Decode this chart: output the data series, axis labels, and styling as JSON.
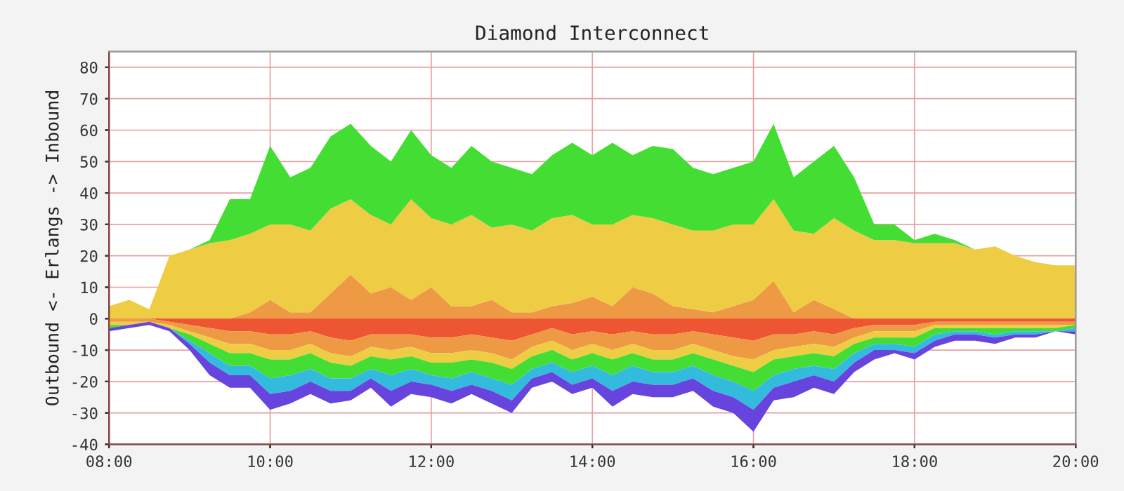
{
  "chart_data": [
    {
      "type": "area",
      "title": "Diamond Interconnect",
      "ylabel": "Outbound <- Erlangs -> Inbound",
      "stacked": true,
      "grid": true,
      "x": [
        8.0,
        8.25,
        8.5,
        8.75,
        9.0,
        9.25,
        9.5,
        9.75,
        10.0,
        10.25,
        10.5,
        10.75,
        11.0,
        11.25,
        11.5,
        11.75,
        12.0,
        12.25,
        12.5,
        12.75,
        13.0,
        13.25,
        13.5,
        13.75,
        14.0,
        14.25,
        14.5,
        14.75,
        15.0,
        15.25,
        15.5,
        15.75,
        16.0,
        16.25,
        16.5,
        16.75,
        17.0,
        17.25,
        17.5,
        17.75,
        18.0,
        18.25,
        18.5,
        18.75,
        19.0,
        19.25,
        19.5,
        19.75,
        20.0
      ],
      "xlim": [
        8,
        20
      ],
      "xticks": [
        {
          "value": 8,
          "label": "08:00"
        },
        {
          "value": 10,
          "label": "10:00"
        },
        {
          "value": 12,
          "label": "12:00"
        },
        {
          "value": 14,
          "label": "14:00"
        },
        {
          "value": 16,
          "label": "16:00"
        },
        {
          "value": 18,
          "label": "18:00"
        },
        {
          "value": 20,
          "label": "20:00"
        }
      ],
      "ylim": [
        -40,
        85
      ],
      "yticks": [
        -40,
        -30,
        -20,
        -10,
        0,
        10,
        20,
        30,
        40,
        50,
        60,
        70,
        80
      ],
      "series": [
        {
          "color": "#ee9944",
          "values": [
            0,
            0,
            0,
            0,
            0,
            0,
            0,
            2,
            6,
            2,
            2,
            8,
            14,
            8,
            10,
            6,
            10,
            4,
            4,
            6,
            2,
            2,
            4,
            5,
            7,
            4,
            10,
            8,
            4,
            3,
            2,
            4,
            6,
            12,
            2,
            6,
            3,
            0,
            0,
            0,
            0,
            0,
            0,
            0,
            0,
            0,
            0,
            0,
            0
          ]
        },
        {
          "color": "#eecc44",
          "values": [
            4,
            6,
            3,
            20,
            22,
            24,
            25,
            25,
            24,
            28,
            26,
            27,
            24,
            25,
            20,
            32,
            22,
            26,
            29,
            23,
            28,
            26,
            28,
            28,
            23,
            26,
            23,
            24,
            26,
            25,
            26,
            26,
            24,
            26,
            26,
            21,
            29,
            28,
            25,
            25,
            24,
            24,
            24,
            22,
            23,
            20,
            18,
            17,
            17
          ]
        },
        {
          "color": "#44dd33",
          "values": [
            0,
            0,
            0,
            0,
            0,
            1,
            13,
            11,
            25,
            15,
            20,
            23,
            24,
            22,
            20,
            22,
            20,
            18,
            22,
            21,
            18,
            18,
            20,
            23,
            22,
            26,
            19,
            23,
            24,
            20,
            18,
            18,
            20,
            24,
            17,
            23,
            23,
            17,
            5,
            5,
            1,
            3,
            1,
            0,
            0,
            0,
            0,
            0,
            0
          ]
        }
      ]
    },
    {
      "type": "area",
      "stacked": true,
      "tick_labels": false,
      "x": [
        8.0,
        8.25,
        8.5,
        8.75,
        9.0,
        9.25,
        9.5,
        9.75,
        10.0,
        10.25,
        10.5,
        10.75,
        11.0,
        11.25,
        11.5,
        11.75,
        12.0,
        12.25,
        12.5,
        12.75,
        13.0,
        13.25,
        13.5,
        13.75,
        14.0,
        14.25,
        14.5,
        14.75,
        15.0,
        15.25,
        15.5,
        15.75,
        16.0,
        16.25,
        16.5,
        16.75,
        17.0,
        17.25,
        17.5,
        17.75,
        18.0,
        18.25,
        18.5,
        18.75,
        19.0,
        19.25,
        19.5,
        19.75,
        20.0
      ],
      "xlim": [
        8,
        20
      ],
      "xticks": [
        {
          "value": 8,
          "label": null
        },
        {
          "value": 10,
          "label": null
        },
        {
          "value": 12,
          "label": null
        },
        {
          "value": 14,
          "label": null
        },
        {
          "value": 16,
          "label": null
        },
        {
          "value": 18,
          "label": null
        },
        {
          "value": 20,
          "label": null
        }
      ],
      "ylim": [
        -40,
        85
      ],
      "yticks": [
        -40,
        -30,
        -20,
        -10,
        0,
        10,
        20,
        30,
        40,
        50,
        60,
        70,
        80
      ],
      "series": [
        {
          "color": "#ee5533",
          "values": [
            0,
            0,
            0,
            -1,
            -2,
            -3,
            -4,
            -4,
            -5,
            -5,
            -4,
            -6,
            -7,
            -5,
            -5,
            -5,
            -6,
            -6,
            -5,
            -6,
            -7,
            -5,
            -3,
            -5,
            -4,
            -5,
            -4,
            -5,
            -5,
            -4,
            -5,
            -6,
            -7,
            -5,
            -5,
            -4,
            -5,
            -3,
            -2,
            -2,
            -2,
            -1,
            -1,
            -1,
            -1,
            -1,
            -1,
            -1,
            -1
          ]
        },
        {
          "color": "#ee9944",
          "values": [
            -1,
            -1,
            -1,
            -1,
            -2,
            -3,
            -4,
            -4,
            -5,
            -5,
            -4,
            -5,
            -5,
            -4,
            -5,
            -4,
            -5,
            -5,
            -5,
            -5,
            -6,
            -4,
            -4,
            -5,
            -4,
            -5,
            -4,
            -5,
            -5,
            -4,
            -5,
            -6,
            -6,
            -5,
            -4,
            -4,
            -4,
            -3,
            -2,
            -2,
            -2,
            -1,
            -1,
            -1,
            -1,
            -1,
            -1,
            -1,
            -1
          ]
        },
        {
          "color": "#eecc44",
          "values": [
            -1,
            -1,
            0,
            -1,
            -1,
            -2,
            -3,
            -3,
            -3,
            -3,
            -3,
            -3,
            -3,
            -3,
            -3,
            -3,
            -3,
            -3,
            -3,
            -3,
            -3,
            -3,
            -3,
            -3,
            -3,
            -3,
            -3,
            -3,
            -3,
            -3,
            -3,
            -3,
            -4,
            -3,
            -3,
            -3,
            -3,
            -2,
            -2,
            -2,
            -2,
            -1,
            -1,
            -1,
            -1,
            -1,
            -1,
            -1,
            0
          ]
        },
        {
          "color": "#44dd33",
          "values": [
            -1,
            0,
            0,
            0,
            -2,
            -3,
            -4,
            -4,
            -6,
            -5,
            -5,
            -5,
            -4,
            -4,
            -5,
            -4,
            -4,
            -5,
            -4,
            -5,
            -5,
            -4,
            -4,
            -4,
            -4,
            -5,
            -4,
            -4,
            -4,
            -4,
            -5,
            -5,
            -6,
            -5,
            -4,
            -4,
            -4,
            -3,
            -2,
            -2,
            -3,
            -2,
            -1,
            -1,
            -2,
            -1,
            -1,
            -1,
            -1
          ]
        },
        {
          "color": "#33bbdd",
          "values": [
            0,
            0,
            0,
            0,
            -1,
            -3,
            -3,
            -3,
            -5,
            -5,
            -4,
            -4,
            -4,
            -3,
            -5,
            -4,
            -3,
            -4,
            -4,
            -4,
            -5,
            -3,
            -3,
            -4,
            -4,
            -5,
            -5,
            -4,
            -4,
            -4,
            -5,
            -5,
            -6,
            -4,
            -4,
            -3,
            -4,
            -3,
            -2,
            -2,
            -2,
            -2,
            -1,
            -1,
            -1,
            -1,
            -1,
            0,
            -1
          ]
        },
        {
          "color": "#6644dd",
          "values": [
            -1,
            -1,
            -1,
            -1,
            -2,
            -4,
            -4,
            -4,
            -5,
            -4,
            -4,
            -4,
            -3,
            -3,
            -5,
            -4,
            -4,
            -4,
            -3,
            -4,
            -4,
            -3,
            -3,
            -3,
            -3,
            -5,
            -4,
            -4,
            -4,
            -4,
            -5,
            -5,
            -7,
            -4,
            -5,
            -4,
            -4,
            -3,
            -3,
            -1,
            -2,
            -2,
            -2,
            -2,
            -2,
            -1,
            -1,
            0,
            -1
          ]
        }
      ]
    }
  ]
}
